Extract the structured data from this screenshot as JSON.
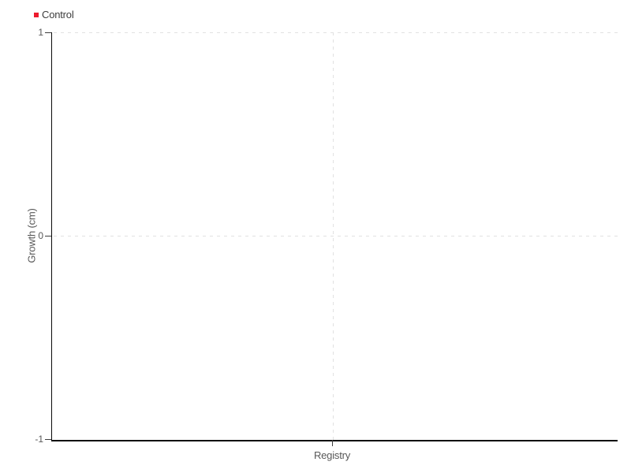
{
  "chart_data": {
    "type": "scatter",
    "title": "",
    "xlabel": "Registry",
    "ylabel": "Growth (cm)",
    "categories": [
      "Registry"
    ],
    "series": [
      {
        "name": "Control",
        "marker": "square",
        "color": "#ed1b2d",
        "values": []
      }
    ],
    "ylim": [
      -1,
      1
    ],
    "yticks": [
      1,
      0,
      -1
    ],
    "xticks": [
      "Registry"
    ],
    "grid": "dashed-horizontal-and-vertical",
    "legend_position": "top-left",
    "plot_background": "#ffffff"
  },
  "legend": {
    "items": [
      {
        "label": "Control",
        "color": "#ed1b2d"
      }
    ]
  },
  "axes": {
    "y_label": "Growth (cm)",
    "x_label": "Registry",
    "y_ticks": [
      "1",
      "0",
      "-1"
    ]
  },
  "colors": {
    "axis": "#0a0a0a",
    "grid": "#e1e1e1",
    "tick_text": "#585858",
    "legend_text": "#3d3d3d",
    "series_red": "#ed1b2d",
    "background": "#ffffff"
  }
}
